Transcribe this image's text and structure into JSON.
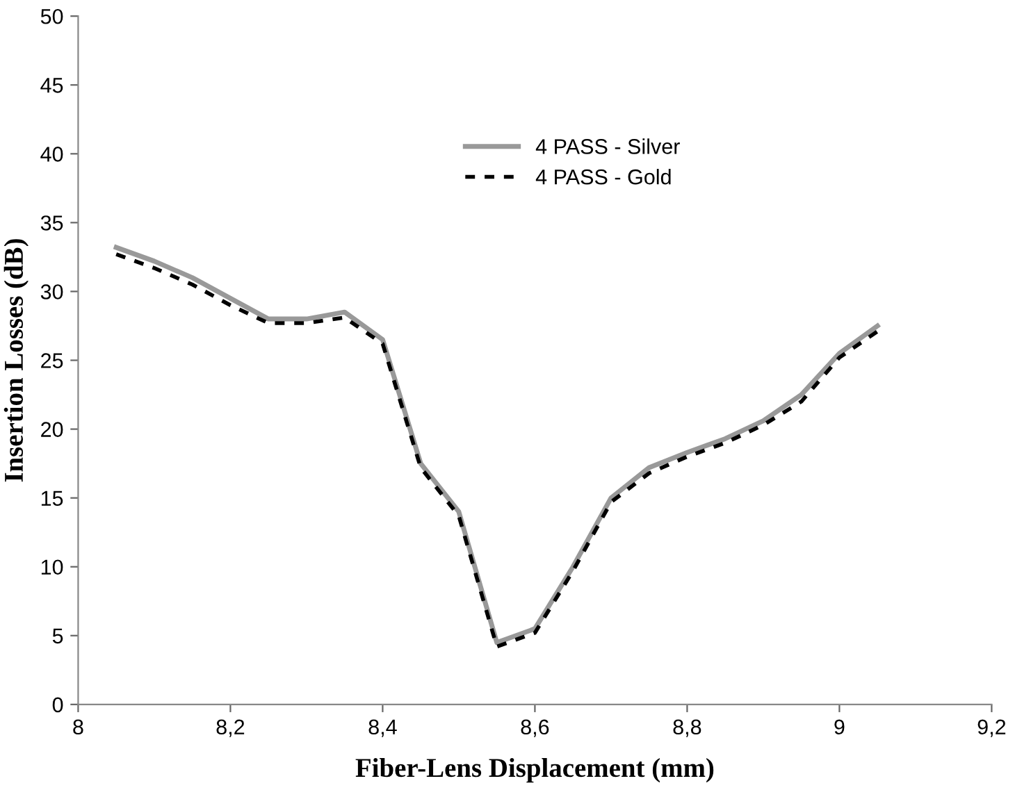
{
  "chart_data": {
    "type": "line",
    "xlabel": "Fiber-Lens Displacement (mm)",
    "ylabel": "Insertion Losses (dB)",
    "x": [
      8.05,
      8.1,
      8.15,
      8.2,
      8.25,
      8.3,
      8.35,
      8.4,
      8.45,
      8.5,
      8.55,
      8.6,
      8.65,
      8.7,
      8.75,
      8.8,
      8.85,
      8.9,
      8.95,
      9.0,
      9.05
    ],
    "series": [
      {
        "name": "4 PASS - Silver",
        "color": "#999999",
        "line_style": "solid",
        "values": [
          33.2,
          32.2,
          31,
          29.5,
          28,
          28,
          28.5,
          26.5,
          17.5,
          14,
          4.5,
          5.5,
          10,
          15,
          17.2,
          18.3,
          19.3,
          20.6,
          22.5,
          25.5,
          27.5
        ]
      },
      {
        "name": "4 PASS - Gold",
        "color": "#000000",
        "line_style": "dotted",
        "values": [
          32.7,
          31.7,
          30.5,
          29,
          27.7,
          27.7,
          28.1,
          26.2,
          17.2,
          13.7,
          4.2,
          5.2,
          9.7,
          14.7,
          16.8,
          18,
          19,
          20.3,
          22,
          25.2,
          27.1
        ]
      }
    ],
    "xlim": [
      8,
      9.2
    ],
    "ylim": [
      0,
      50
    ],
    "xticks": [
      8,
      {
        "value": 8.2,
        "label": "8,2"
      },
      {
        "value": 8.4,
        "label": "8,4"
      },
      {
        "value": 8.6,
        "label": "8,6"
      },
      {
        "value": 8.8,
        "label": "8,8"
      },
      9,
      {
        "value": 9.2,
        "label": "9,2"
      }
    ],
    "yticks": [
      0,
      5,
      10,
      15,
      20,
      25,
      30,
      35,
      40,
      45,
      50
    ],
    "grid": false,
    "legend": "top right",
    "marker": "none"
  }
}
